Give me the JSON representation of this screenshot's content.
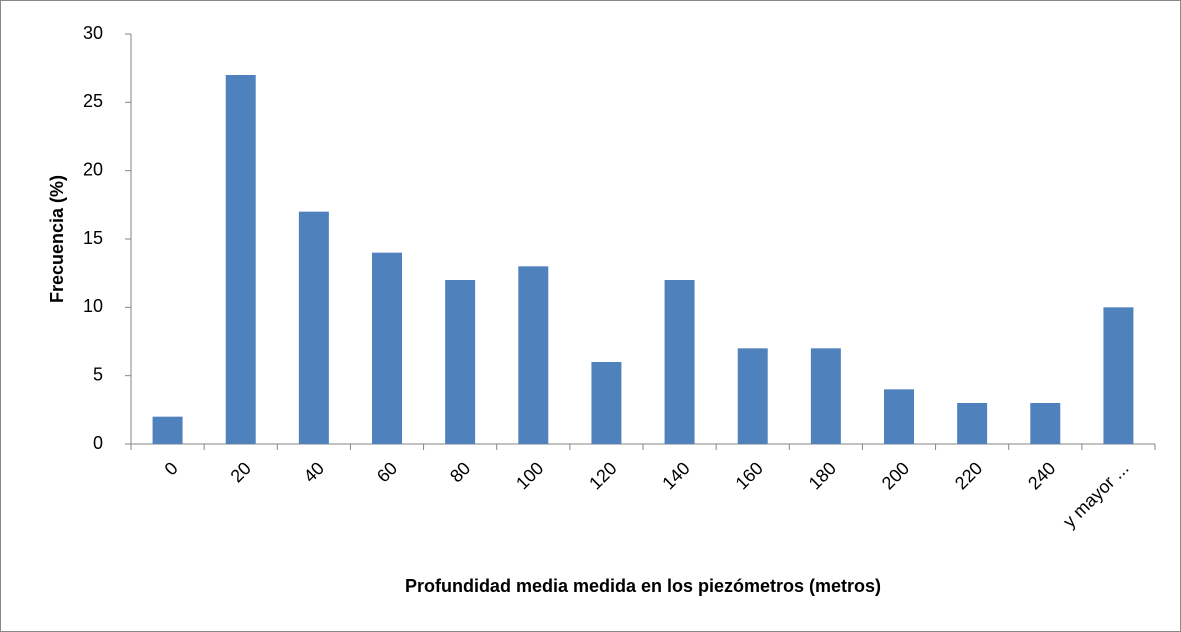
{
  "chart_data": {
    "type": "bar",
    "x_label": "Profundidad media medida en los piezómetros (metros)",
    "y_label": "Frecuencia (%)",
    "categories": [
      "0",
      "20",
      "40",
      "60",
      "80",
      "100",
      "120",
      "140",
      "160",
      "180",
      "200",
      "220",
      "240",
      "y mayor ..."
    ],
    "values": [
      2,
      27,
      17,
      14,
      12,
      13,
      6,
      12,
      7,
      7,
      4,
      3,
      3,
      10
    ],
    "color": "#4f81bd",
    "ylim": [
      0,
      30
    ],
    "yticks": [
      0,
      5,
      10,
      15,
      20,
      25,
      30
    ],
    "grid": false
  }
}
